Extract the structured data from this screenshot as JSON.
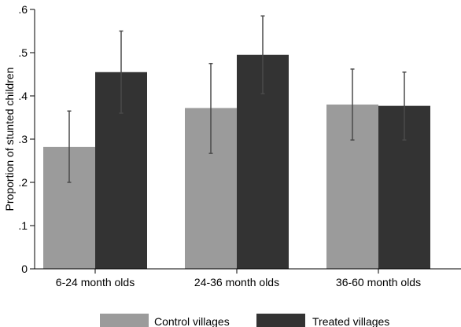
{
  "chart_data": {
    "type": "bar",
    "title": "",
    "xlabel": "",
    "ylabel": "Proportion of stunted children",
    "ylim": [
      0,
      0.6
    ],
    "yticks": [
      0,
      0.1,
      0.2,
      0.3,
      0.4,
      0.5,
      0.6
    ],
    "ytick_labels": [
      "0",
      ".1",
      ".2",
      ".3",
      ".4",
      ".5",
      ".6"
    ],
    "grid": false,
    "legend_position": "bottom",
    "categories": [
      "6-24 month olds",
      "24-36 month olds",
      "36-60 month olds"
    ],
    "series": [
      {
        "name": "Control villages",
        "color": "#9b9b9b",
        "values": [
          0.282,
          0.372,
          0.38
        ],
        "ci_low": [
          0.2,
          0.267,
          0.298
        ],
        "ci_high": [
          0.365,
          0.475,
          0.462
        ]
      },
      {
        "name": "Treated villages",
        "color": "#333333",
        "values": [
          0.455,
          0.495,
          0.377
        ],
        "ci_low": [
          0.36,
          0.405,
          0.298
        ],
        "ci_high": [
          0.55,
          0.585,
          0.455
        ]
      }
    ],
    "error_bar_color": "#4a4a4a"
  }
}
